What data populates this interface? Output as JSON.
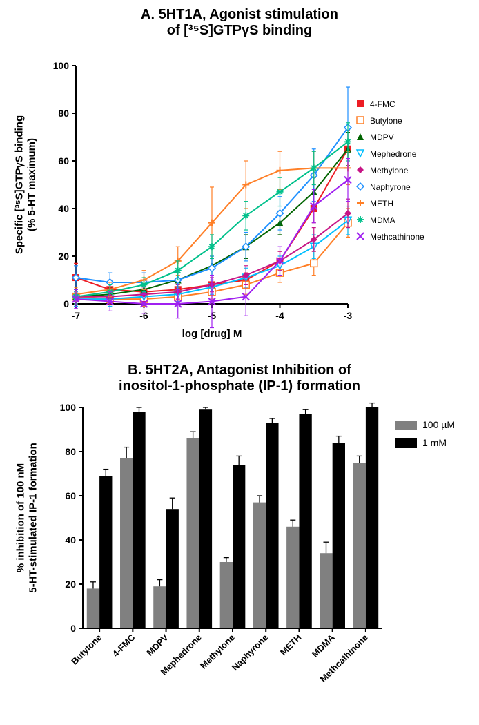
{
  "panelA": {
    "type": "line-scatter",
    "title_line1": "A. 5HT1A,  Agonist stimulation",
    "title_line2": "of [³⁵S]GTPγS binding",
    "title_fontsize": 20,
    "xlabel": "log [drug] M",
    "ylabel": "Specific [³⁵S]GTPγS binding\n(% 5-HT maximum)",
    "label_fontsize": 14,
    "xlim": [
      -7,
      -3
    ],
    "ylim": [
      0,
      100
    ],
    "xticks": [
      -7,
      -6,
      -5,
      -4,
      -3
    ],
    "yticks": [
      0,
      20,
      40,
      60,
      80,
      100
    ],
    "axis_color": "#000000",
    "background_color": "#ffffff",
    "series": [
      {
        "name": "4-FMC",
        "color": "#ed1c24",
        "marker": "square-filled",
        "x": [
          -7,
          -6.5,
          -6,
          -5.5,
          -5,
          -4.5,
          -4,
          -3.5,
          -3
        ],
        "y": [
          11,
          6,
          5,
          6,
          8,
          10,
          18,
          40,
          65
        ],
        "err": [
          6,
          4,
          3,
          3,
          3,
          3,
          4,
          6,
          8
        ]
      },
      {
        "name": "Butylone",
        "color": "#ff7f27",
        "marker": "square-open",
        "x": [
          -7,
          -6.5,
          -6,
          -5.5,
          -5,
          -4.5,
          -4,
          -3.5,
          -3
        ],
        "y": [
          3,
          2,
          2,
          3,
          5,
          8,
          13,
          17,
          34
        ],
        "err": [
          3,
          3,
          3,
          3,
          3,
          4,
          4,
          5,
          6
        ]
      },
      {
        "name": "MDPV",
        "color": "#006400",
        "marker": "triangle-filled",
        "x": [
          -7,
          -6.5,
          -6,
          -5.5,
          -5,
          -4.5,
          -4,
          -3.5,
          -3
        ],
        "y": [
          3,
          4,
          6,
          10,
          16,
          24,
          34,
          47,
          65
        ],
        "err": [
          3,
          3,
          3,
          3,
          4,
          5,
          5,
          6,
          7
        ]
      },
      {
        "name": "Mephedrone",
        "color": "#00bfff",
        "marker": "triangle-open-down",
        "x": [
          -7,
          -6.5,
          -6,
          -5.5,
          -5,
          -4.5,
          -4,
          -3.5,
          -3
        ],
        "y": [
          2,
          2,
          3,
          4,
          7,
          11,
          16,
          24,
          35
        ],
        "err": [
          3,
          3,
          3,
          3,
          3,
          4,
          4,
          5,
          6
        ]
      },
      {
        "name": "Methylone",
        "color": "#c71585",
        "marker": "diamond-filled",
        "x": [
          -7,
          -6.5,
          -6,
          -5.5,
          -5,
          -4.5,
          -4,
          -3.5,
          -3
        ],
        "y": [
          3,
          3,
          4,
          5,
          8,
          12,
          18,
          27,
          38
        ],
        "err": [
          3,
          3,
          3,
          3,
          3,
          4,
          4,
          5,
          6
        ]
      },
      {
        "name": "Naphyrone",
        "color": "#1e90ff",
        "marker": "diamond-open",
        "x": [
          -7,
          -6.5,
          -6,
          -5.5,
          -5,
          -4.5,
          -4,
          -3.5,
          -3
        ],
        "y": [
          11,
          9,
          9,
          10,
          15,
          24,
          38,
          54,
          74
        ],
        "err": [
          5,
          4,
          4,
          4,
          5,
          6,
          7,
          11,
          17
        ]
      },
      {
        "name": "METH",
        "color": "#ff7f27",
        "marker": "plus",
        "x": [
          -7,
          -6.5,
          -6,
          -5.5,
          -5,
          -4.5,
          -4,
          -3.5,
          -3
        ],
        "y": [
          4,
          6,
          10,
          18,
          34,
          50,
          56,
          57,
          57
        ],
        "err": [
          3,
          3,
          4,
          6,
          15,
          10,
          8,
          7,
          7
        ]
      },
      {
        "name": "MDMA",
        "color": "#00c08b",
        "marker": "asterisk",
        "x": [
          -7,
          -6.5,
          -6,
          -5.5,
          -5,
          -4.5,
          -4,
          -3.5,
          -3
        ],
        "y": [
          3,
          5,
          8,
          14,
          24,
          37,
          47,
          57,
          68
        ],
        "err": [
          3,
          3,
          3,
          4,
          5,
          6,
          6,
          7,
          8
        ]
      },
      {
        "name": "Methcathinone",
        "color": "#a020f0",
        "marker": "x",
        "x": [
          -7,
          -6.5,
          -6,
          -5.5,
          -5,
          -4.5,
          -4,
          -3.5,
          -3
        ],
        "y": [
          2,
          1,
          0,
          0,
          1,
          3,
          18,
          41,
          52
        ],
        "err": [
          4,
          4,
          4,
          6,
          11,
          8,
          6,
          7,
          9
        ]
      }
    ],
    "line_width": 2,
    "marker_size": 5,
    "errorbar_width": 1.2,
    "legend_fontsize": 12
  },
  "panelB": {
    "type": "grouped-bar",
    "title_line1": "B. 5HT2A, Antagonist Inhibition of",
    "title_line2": "inositol-1-phosphate (IP-1) formation",
    "title_fontsize": 20,
    "ylabel": "% inhibition of 100 nM\n5-HT-stimulated IP-1 formation",
    "label_fontsize": 14,
    "ylim": [
      0,
      100
    ],
    "yticks": [
      0,
      20,
      40,
      60,
      80,
      100
    ],
    "categories": [
      "Butylone",
      "4-FMC",
      "MDPV",
      "Mephedrone",
      "Methylone",
      "Naphyrone",
      "METH",
      "MDMA",
      "Methcathinone"
    ],
    "groups": [
      {
        "name": "100 µM",
        "color": "#808080",
        "values": [
          18,
          77,
          19,
          86,
          30,
          57,
          46,
          34,
          75
        ],
        "err": [
          3,
          5,
          3,
          3,
          2,
          3,
          3,
          5,
          3
        ]
      },
      {
        "name": "1 mM",
        "color": "#000000",
        "values": [
          69,
          98,
          54,
          99,
          74,
          93,
          97,
          84,
          100
        ],
        "err": [
          3,
          2,
          5,
          1,
          4,
          2,
          2,
          3,
          2
        ]
      }
    ],
    "bar_width": 0.38,
    "axis_color": "#000000",
    "background_color": "#ffffff",
    "legend_fontsize": 14,
    "xtick_fontsize": 13,
    "xtick_rotation": -45
  }
}
